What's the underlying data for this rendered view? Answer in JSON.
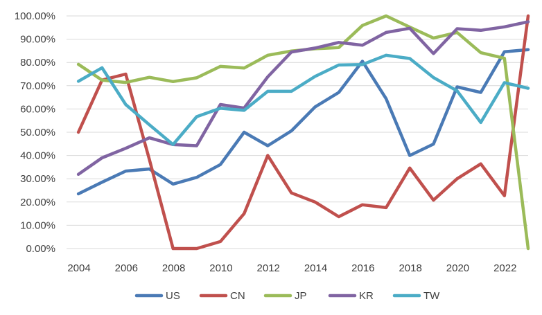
{
  "chart_data": {
    "type": "line",
    "title": "",
    "xlabel": "",
    "ylabel": "",
    "x": [
      2004,
      2005,
      2006,
      2007,
      2008,
      2009,
      2010,
      2011,
      2012,
      2013,
      2014,
      2015,
      2016,
      2017,
      2018,
      2019,
      2020,
      2021,
      2022,
      2023
    ],
    "x_tick_labels": [
      "2004",
      "2006",
      "2008",
      "2010",
      "2012",
      "2014",
      "2016",
      "2018",
      "2020",
      "2022"
    ],
    "x_ticks": [
      2004,
      2006,
      2008,
      2010,
      2012,
      2014,
      2016,
      2018,
      2020,
      2022
    ],
    "ylim": [
      0,
      100
    ],
    "y_ticks": [
      0,
      10,
      20,
      30,
      40,
      50,
      60,
      70,
      80,
      90,
      100
    ],
    "y_tick_labels": [
      "0.00%",
      "10.00%",
      "20.00%",
      "30.00%",
      "40.00%",
      "50.00%",
      "60.00%",
      "70.00%",
      "80.00%",
      "90.00%",
      "100.00%"
    ],
    "grid": true,
    "legend_position": "bottom",
    "series": [
      {
        "name": "US",
        "color": "#4a7ab5",
        "values": [
          23.5,
          28.5,
          33.3,
          34.2,
          27.7,
          30.6,
          36.1,
          50.0,
          44.2,
          50.6,
          60.9,
          67.1,
          80.5,
          64.4,
          40.0,
          44.9,
          69.5,
          67.1,
          84.6,
          85.5
        ]
      },
      {
        "name": "CN",
        "color": "#c0504d",
        "values": [
          50.0,
          72.4,
          75.0,
          38.3,
          0.0,
          0.0,
          3.0,
          15.0,
          40.0,
          23.9,
          20.0,
          13.7,
          18.8,
          17.6,
          34.6,
          20.8,
          30.0,
          36.4,
          22.7,
          100.0
        ]
      },
      {
        "name": "JP",
        "color": "#9bbb59",
        "values": [
          79.2,
          72.4,
          71.4,
          73.6,
          71.8,
          73.4,
          78.3,
          77.6,
          83.1,
          84.9,
          85.9,
          86.4,
          95.9,
          100.0,
          95.2,
          90.5,
          92.9,
          84.2,
          81.8,
          0.0
        ]
      },
      {
        "name": "KR",
        "color": "#8064a2",
        "values": [
          31.9,
          39.0,
          43.1,
          47.6,
          44.7,
          44.2,
          61.9,
          60.4,
          73.8,
          84.5,
          86.2,
          88.6,
          87.4,
          92.9,
          94.7,
          83.8,
          94.5,
          93.8,
          95.3,
          97.5
        ]
      },
      {
        "name": "TW",
        "color": "#4bacc6",
        "values": [
          71.9,
          77.7,
          61.9,
          53.2,
          44.7,
          56.7,
          60.3,
          59.4,
          67.6,
          67.6,
          74.0,
          78.9,
          79.1,
          83.1,
          81.7,
          73.5,
          67.8,
          54.2,
          71.3,
          68.9
        ]
      }
    ]
  }
}
